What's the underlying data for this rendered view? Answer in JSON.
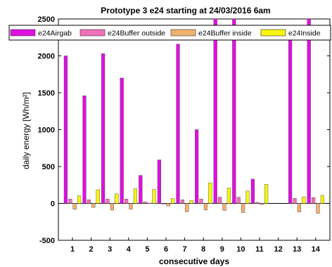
{
  "chart_data": {
    "type": "bar",
    "title": "Prototype 3 e24 starting at 24/03/2016 6am",
    "xlabel": "consecutive days",
    "ylabel": "daily energy [Wh/m²]",
    "ylim": [
      -500,
      2500
    ],
    "yticks": [
      -500,
      0,
      500,
      1000,
      1500,
      2000,
      2500
    ],
    "categories": [
      "1",
      "2",
      "3",
      "4",
      "5",
      "6",
      "7",
      "8",
      "9",
      "10",
      "11",
      "12",
      "13",
      "14"
    ],
    "grid": false,
    "legend_position": "top",
    "series": [
      {
        "name": "e24Airgab",
        "color": "#e010e0",
        "values": [
          2000,
          1460,
          2030,
          1700,
          380,
          590,
          2160,
          1000,
          2500,
          2500,
          330,
          0,
          2400,
          2500
        ]
      },
      {
        "name": "e24Buffer outside",
        "color": "#f070b8",
        "values": [
          60,
          50,
          60,
          60,
          20,
          -10,
          50,
          60,
          85,
          85,
          15,
          0,
          70,
          80
        ]
      },
      {
        "name": "e24Buffer inside",
        "color": "#f0b070",
        "values": [
          -80,
          -55,
          -90,
          -80,
          5,
          -35,
          -115,
          -90,
          -95,
          -125,
          -15,
          0,
          -115,
          -135
        ]
      },
      {
        "name": "e24Inside",
        "color": "#f8f410",
        "values": [
          105,
          185,
          130,
          200,
          190,
          70,
          40,
          280,
          210,
          170,
          260,
          0,
          90,
          110
        ]
      }
    ]
  }
}
